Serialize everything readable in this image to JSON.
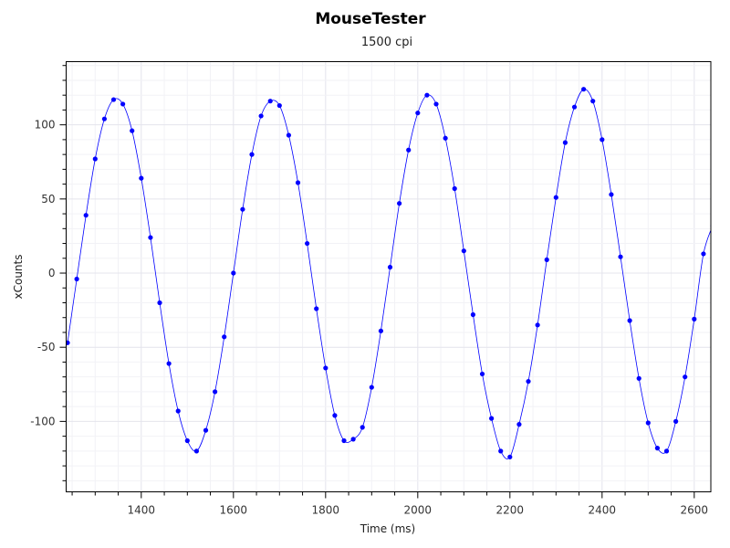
{
  "chart_data": {
    "type": "scatter",
    "title": "MouseTester",
    "subtitle": "1500 cpi",
    "xlabel": "Time (ms)",
    "ylabel": "xCounts",
    "xlim": [
      1237,
      2636
    ],
    "ylim": [
      -147.5,
      142.6
    ],
    "xticks": [
      1400,
      1600,
      1800,
      2000,
      2200,
      2400,
      2600
    ],
    "xtick_labels": [
      "1400",
      "1600",
      "1800",
      "2000",
      "2200",
      "2400",
      "2600"
    ],
    "yticks": [
      100,
      50,
      0,
      -50,
      -100
    ],
    "ytick_labels": [
      "100",
      "50",
      "0",
      "-50",
      "-100"
    ],
    "x_minor_step": 50,
    "y_minor_step": 10,
    "grid": true,
    "color": "#0000ff",
    "series": [
      {
        "name": "xCounts",
        "x_start": 1240,
        "x_step": 20,
        "values": [
          -47,
          -4,
          39,
          77,
          104,
          117,
          114,
          96,
          64,
          24,
          -20,
          -61,
          -93,
          -113,
          -120,
          -106,
          -80,
          -43,
          0,
          43,
          80,
          106,
          116,
          113,
          93,
          61,
          20,
          -24,
          -64,
          -96,
          -113,
          -112,
          -104,
          -77,
          -39,
          4,
          47,
          83,
          108,
          120,
          114,
          91,
          57,
          15,
          -28,
          -68,
          -98,
          -120,
          -124,
          -102,
          -73,
          -35,
          9,
          51,
          88,
          112,
          124,
          116,
          90,
          53,
          11,
          -32,
          -71,
          -101,
          -118,
          -120,
          -100,
          -70,
          -31,
          13,
          32
        ]
      }
    ]
  }
}
